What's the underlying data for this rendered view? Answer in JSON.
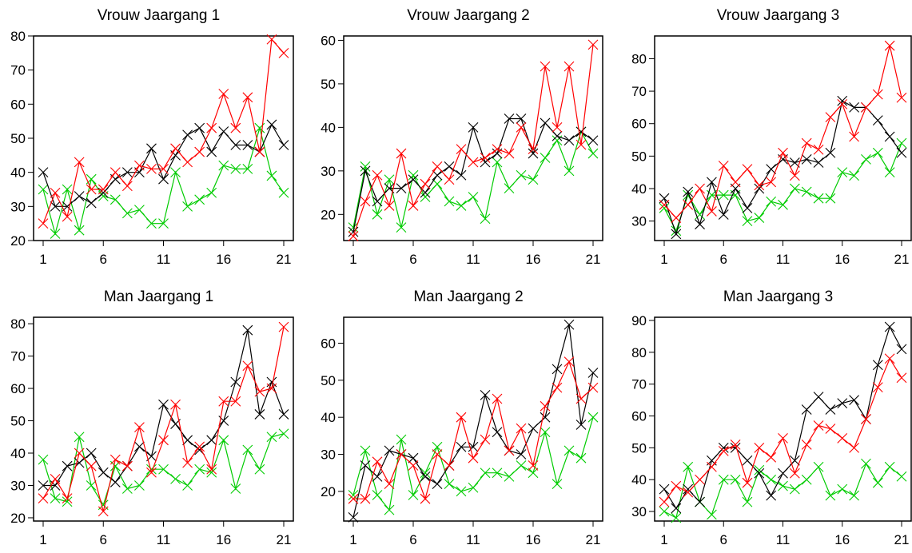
{
  "colors": {
    "black": "#000000",
    "red": "#ff0000",
    "green": "#00cc00"
  },
  "chart_data": [
    {
      "type": "line",
      "title": "Vrouw Jaargang 1",
      "x": [
        1,
        2,
        3,
        4,
        5,
        6,
        7,
        8,
        9,
        10,
        11,
        12,
        13,
        14,
        15,
        16,
        17,
        18,
        19,
        20,
        21
      ],
      "xticks": [
        1,
        6,
        11,
        16,
        21
      ],
      "ylim": [
        20,
        80
      ],
      "yticks": [
        20,
        30,
        40,
        50,
        60,
        70,
        80
      ],
      "series": [
        {
          "color": "green",
          "values": [
            35,
            22,
            35,
            23,
            38,
            33,
            32,
            28,
            29,
            25,
            25,
            40,
            30,
            32,
            34,
            42,
            41,
            41,
            53,
            39,
            34
          ]
        },
        {
          "color": "black",
          "values": [
            40,
            30,
            30,
            33,
            31,
            34,
            38,
            40,
            40,
            47,
            38,
            45,
            51,
            53,
            46,
            52,
            48,
            48,
            46,
            54,
            48
          ]
        },
        {
          "color": "red",
          "values": [
            25,
            34,
            27,
            43,
            35,
            35,
            40,
            36,
            42,
            41,
            41,
            47,
            43,
            46,
            53,
            63,
            53,
            62,
            46,
            79,
            75
          ]
        }
      ]
    },
    {
      "type": "line",
      "title": "Vrouw Jaargang 2",
      "x": [
        1,
        2,
        3,
        4,
        5,
        6,
        7,
        8,
        9,
        10,
        11,
        12,
        13,
        14,
        15,
        16,
        17,
        18,
        19,
        20,
        21
      ],
      "xticks": [
        1,
        6,
        11,
        16,
        21
      ],
      "ylim": [
        14,
        61
      ],
      "yticks": [
        20,
        30,
        40,
        50,
        60
      ],
      "series": [
        {
          "color": "green",
          "values": [
            17,
            31,
            20,
            28,
            17,
            29,
            24,
            27,
            23,
            22,
            24,
            19,
            32,
            26,
            29,
            28,
            33,
            37,
            30,
            39,
            34
          ]
        },
        {
          "color": "black",
          "values": [
            16,
            30,
            23,
            26,
            26,
            28,
            25,
            29,
            31,
            29,
            40,
            32,
            34,
            42,
            42,
            34,
            41,
            38,
            37,
            39,
            37
          ]
        },
        {
          "color": "red",
          "values": [
            15,
            23,
            29,
            22,
            34,
            22,
            27,
            31,
            28,
            35,
            32,
            33,
            35,
            34,
            40,
            35,
            54,
            40,
            54,
            36,
            59
          ]
        }
      ]
    },
    {
      "type": "line",
      "title": "Vrouw Jaargang 3",
      "x": [
        1,
        2,
        3,
        4,
        5,
        6,
        7,
        8,
        9,
        10,
        11,
        12,
        13,
        14,
        15,
        16,
        17,
        18,
        19,
        20,
        21
      ],
      "xticks": [
        1,
        6,
        11,
        16,
        21
      ],
      "ylim": [
        24,
        87
      ],
      "yticks": [
        30,
        40,
        50,
        60,
        70,
        80
      ],
      "series": [
        {
          "color": "green",
          "values": [
            34,
            27,
            38,
            32,
            38,
            38,
            38,
            30,
            31,
            36,
            35,
            40,
            39,
            37,
            37,
            45,
            44,
            49,
            51,
            45,
            54
          ]
        },
        {
          "color": "black",
          "values": [
            37,
            26,
            39,
            29,
            42,
            32,
            40,
            34,
            40,
            46,
            49,
            48,
            49,
            48,
            51,
            67,
            65,
            65,
            61,
            56,
            51
          ]
        },
        {
          "color": "red",
          "values": [
            35,
            31,
            35,
            40,
            33,
            47,
            42,
            46,
            41,
            42,
            51,
            44,
            54,
            52,
            62,
            66,
            56,
            65,
            69,
            84,
            68
          ]
        }
      ]
    },
    {
      "type": "line",
      "title": "Man Jaargang 1",
      "x": [
        1,
        2,
        3,
        4,
        5,
        6,
        7,
        8,
        9,
        10,
        11,
        12,
        13,
        14,
        15,
        16,
        17,
        18,
        19,
        20,
        21
      ],
      "xticks": [
        1,
        6,
        11,
        16,
        21
      ],
      "ylim": [
        19,
        82
      ],
      "yticks": [
        20,
        30,
        40,
        50,
        60,
        70,
        80
      ],
      "series": [
        {
          "color": "green",
          "values": [
            38,
            26,
            25,
            45,
            30,
            24,
            36,
            29,
            30,
            35,
            35,
            32,
            30,
            35,
            34,
            44,
            29,
            41,
            35,
            45,
            46
          ]
        },
        {
          "color": "black",
          "values": [
            30,
            30,
            36,
            37,
            40,
            34,
            31,
            36,
            42,
            39,
            55,
            49,
            44,
            41,
            44,
            50,
            62,
            78,
            52,
            62,
            52
          ]
        },
        {
          "color": "red",
          "values": [
            26,
            32,
            26,
            40,
            36,
            22,
            38,
            36,
            48,
            34,
            44,
            55,
            37,
            42,
            35,
            56,
            56,
            67,
            59,
            60,
            79
          ]
        }
      ]
    },
    {
      "type": "line",
      "title": "Man Jaargang 2",
      "x": [
        1,
        2,
        3,
        4,
        5,
        6,
        7,
        8,
        9,
        10,
        11,
        12,
        13,
        14,
        15,
        16,
        17,
        18,
        19,
        20,
        21
      ],
      "xticks": [
        1,
        6,
        11,
        16,
        21
      ],
      "ylim": [
        12,
        67
      ],
      "yticks": [
        20,
        30,
        40,
        50,
        60
      ],
      "series": [
        {
          "color": "green",
          "values": [
            19,
            31,
            19,
            15,
            34,
            19,
            25,
            32,
            22,
            20,
            21,
            25,
            25,
            24,
            27,
            25,
            36,
            22,
            31,
            29,
            40
          ]
        },
        {
          "color": "black",
          "values": [
            13,
            27,
            24,
            31,
            30,
            29,
            24,
            22,
            27,
            32,
            32,
            46,
            36,
            31,
            30,
            37,
            40,
            53,
            65,
            38,
            52
          ]
        },
        {
          "color": "red",
          "values": [
            18,
            18,
            28,
            22,
            30,
            27,
            18,
            30,
            27,
            40,
            29,
            34,
            45,
            31,
            37,
            27,
            43,
            48,
            55,
            45,
            48
          ]
        }
      ]
    },
    {
      "type": "line",
      "title": "Man Jaargang 3",
      "x": [
        1,
        2,
        3,
        4,
        5,
        6,
        7,
        8,
        9,
        10,
        11,
        12,
        13,
        14,
        15,
        16,
        17,
        18,
        19,
        20,
        21
      ],
      "xticks": [
        1,
        6,
        11,
        16,
        21
      ],
      "ylim": [
        27,
        91
      ],
      "yticks": [
        30,
        40,
        50,
        60,
        70,
        80,
        90
      ],
      "series": [
        {
          "color": "green",
          "values": [
            30,
            28,
            44,
            33,
            29,
            40,
            40,
            33,
            43,
            40,
            38,
            37,
            40,
            44,
            35,
            37,
            35,
            45,
            39,
            44,
            41
          ]
        },
        {
          "color": "black",
          "values": [
            37,
            31,
            37,
            33,
            46,
            50,
            50,
            46,
            42,
            35,
            42,
            46,
            62,
            66,
            62,
            64,
            65,
            59,
            76,
            88,
            81
          ]
        },
        {
          "color": "red",
          "values": [
            33,
            38,
            36,
            40,
            44,
            49,
            51,
            39,
            50,
            47,
            53,
            42,
            51,
            57,
            56,
            53,
            50,
            59,
            69,
            78,
            72
          ]
        }
      ]
    }
  ]
}
